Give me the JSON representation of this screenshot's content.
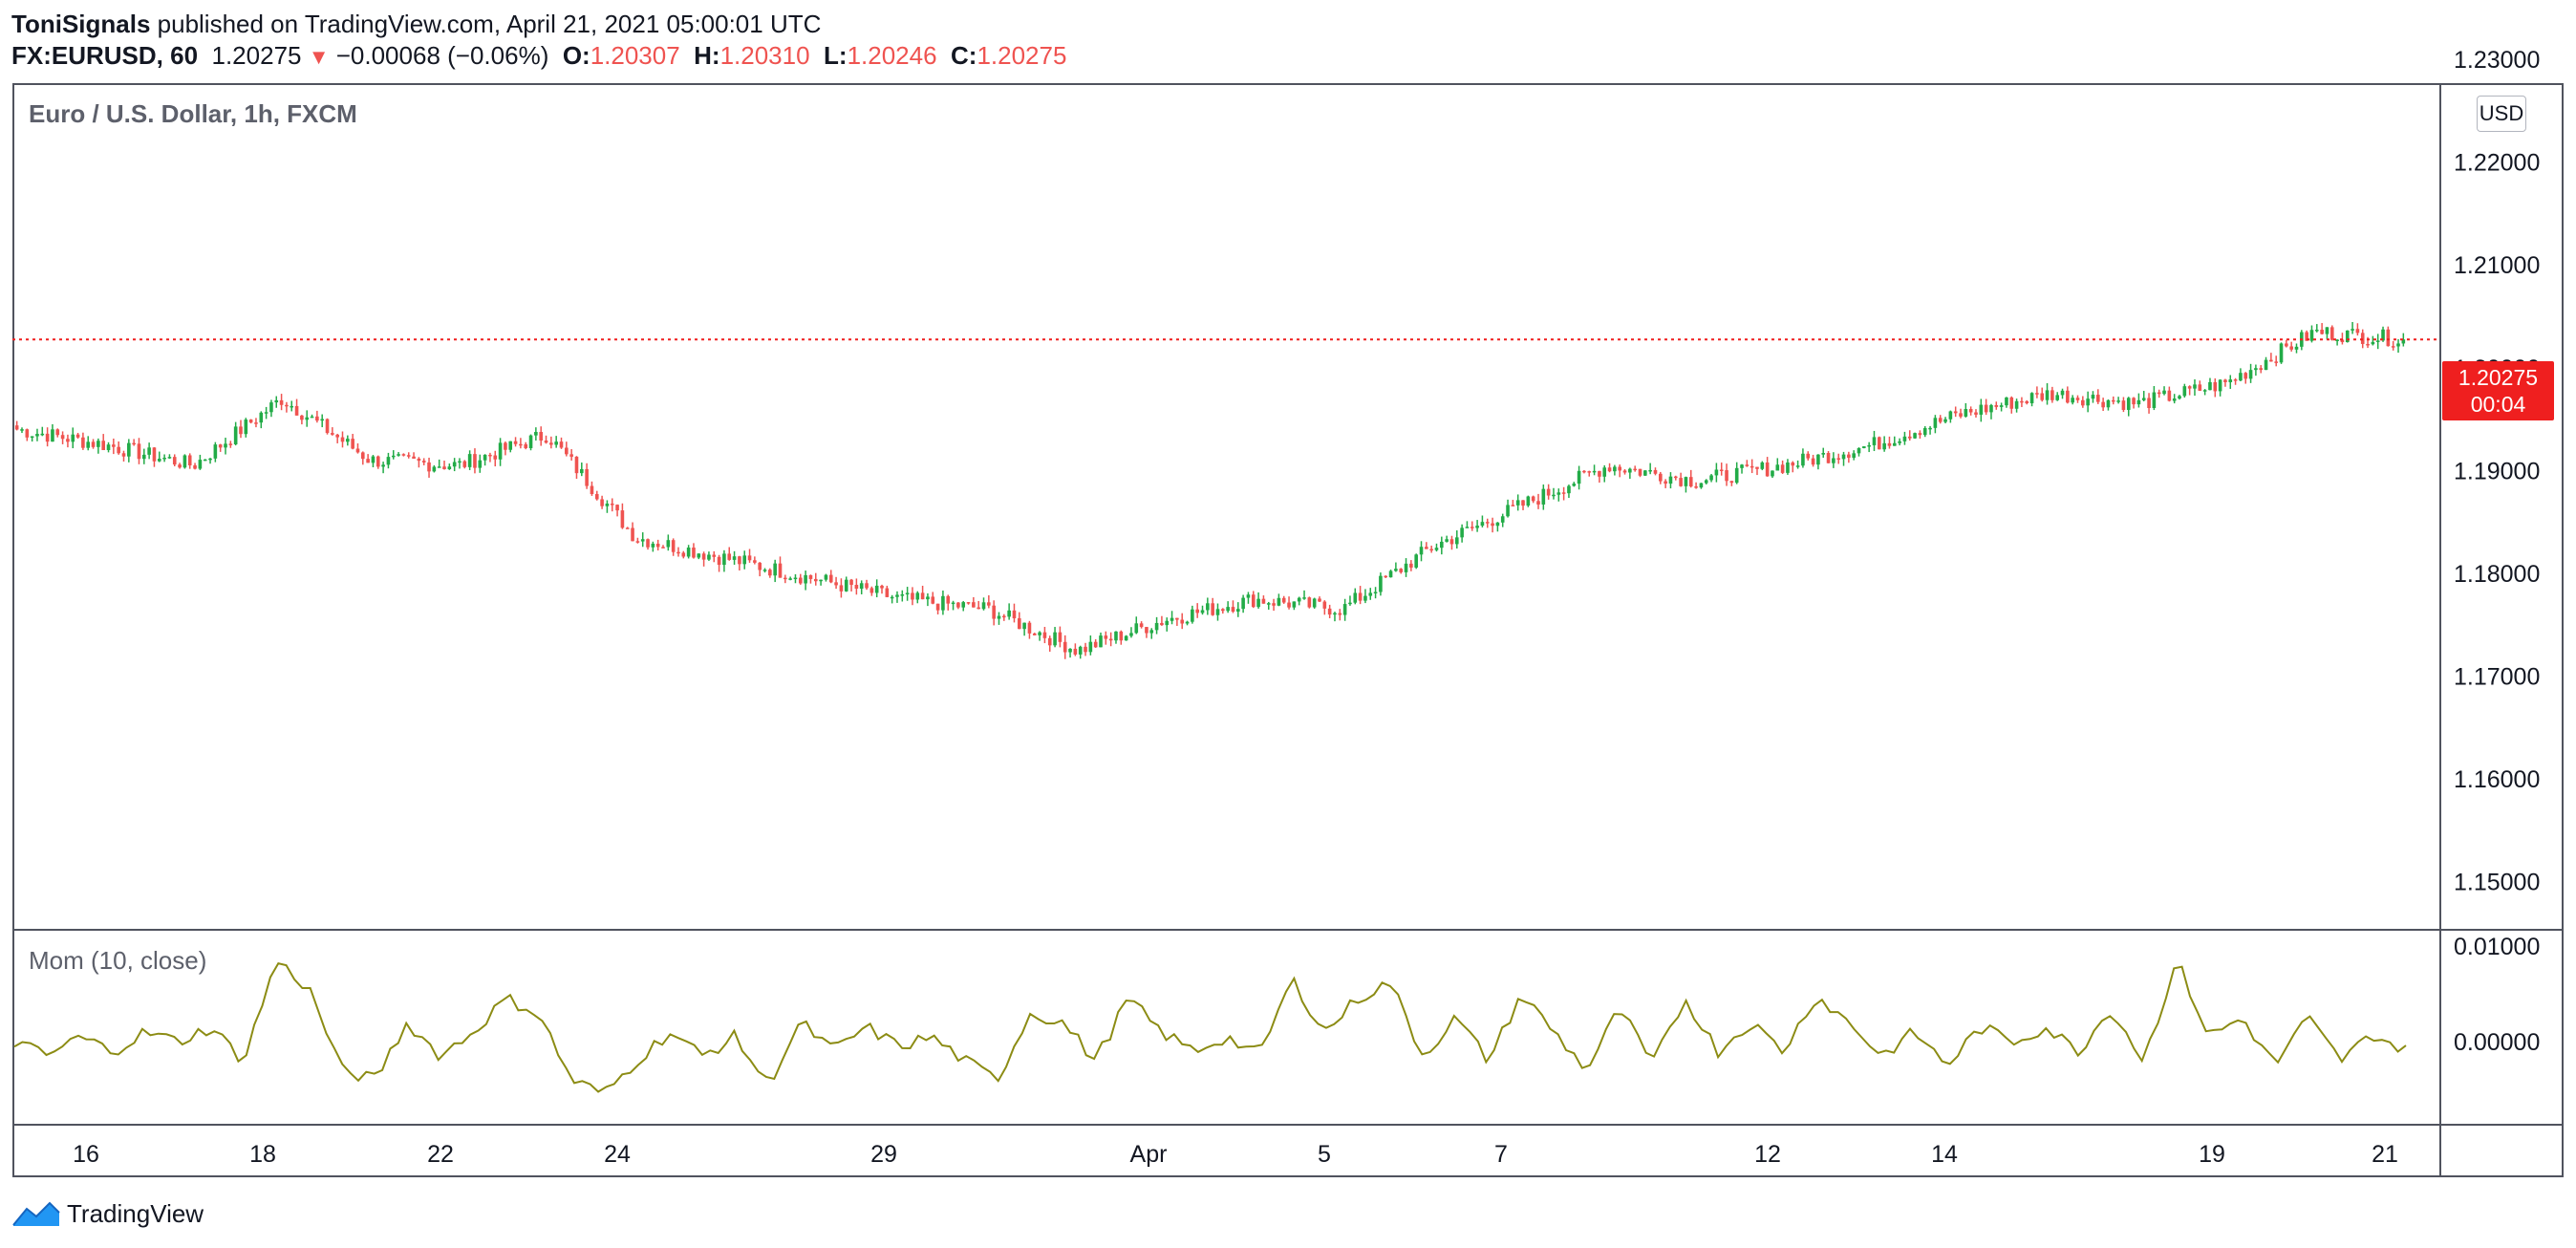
{
  "header": {
    "author": "ToniSignals",
    "published_text": " published on TradingView.com, April 21, 2021 05:00:01 UTC",
    "symbol": "FX:EURUSD, 60",
    "last": "1.20275",
    "change": "−0.00068 (−0.06%)",
    "o_label": "O:",
    "o_value": "1.20307",
    "h_label": "H:",
    "h_value": "1.20310",
    "l_label": "L:",
    "l_value": "1.20246",
    "c_label": "C:",
    "c_value": "1.20275"
  },
  "main_pane": {
    "title": "Euro / U.S. Dollar, 1h, FXCM",
    "currency_button": "USD"
  },
  "price_tag": {
    "price": "1.20275",
    "countdown": "00:04"
  },
  "momentum_pane": {
    "title": "Mom (10, close)"
  },
  "brand": {
    "name": "TradingView"
  },
  "colors": {
    "up": "#26a69a",
    "up_bar": "#22ab47",
    "down": "#ef5350",
    "momentum": "#8c8c14",
    "last_line": "#ef1f1f"
  },
  "chart_data": [
    {
      "type": "candlestick",
      "title": "Euro / U.S. Dollar, 1h, FXCM",
      "ylim": [
        1.1455,
        1.2275
      ],
      "y_ticks": [
        "1.22000",
        "1.21000",
        "1.20000",
        "1.19000",
        "1.18000",
        "1.17000",
        "1.16000",
        "1.15000"
      ],
      "y_tick_values": [
        1.22,
        1.21,
        1.2,
        1.19,
        1.18,
        1.17,
        1.16,
        1.15
      ],
      "partially_hidden_top_tick": "1.23000",
      "x_ticks": [
        "16",
        "18",
        "22",
        "24",
        "29",
        "Apr",
        "5",
        "7",
        "12",
        "14",
        "19",
        "21"
      ],
      "last_price": 1.20275,
      "approx_close_path": [
        [
          "Mar 15",
          1.194
        ],
        [
          "Mar 16",
          1.1925
        ],
        [
          "Mar 17",
          1.1905
        ],
        [
          "Mar 18",
          1.197
        ],
        [
          "Mar 19",
          1.191
        ],
        [
          "Mar 22",
          1.1905
        ],
        [
          "Mar 23",
          1.1935
        ],
        [
          "Mar 24",
          1.1835
        ],
        [
          "Mar 25",
          1.1815
        ],
        [
          "Mar 26",
          1.1795
        ],
        [
          "Mar 29",
          1.1775
        ],
        [
          "Mar 30",
          1.1765
        ],
        [
          "Mar 31",
          1.1725
        ],
        [
          "Apr 1",
          1.1755
        ],
        [
          "Apr 2",
          1.1775
        ],
        [
          "Apr 5",
          1.1765
        ],
        [
          "Apr 6",
          1.1825
        ],
        [
          "Apr 7",
          1.1865
        ],
        [
          "Apr 8",
          1.1905
        ],
        [
          "Apr 9",
          1.189
        ],
        [
          "Apr 12",
          1.1905
        ],
        [
          "Apr 13",
          1.1925
        ],
        [
          "Apr 14",
          1.1955
        ],
        [
          "Apr 15",
          1.1975
        ],
        [
          "Apr 16",
          1.1965
        ],
        [
          "Apr 19",
          1.1985
        ],
        [
          "Apr 20",
          1.2035
        ],
        [
          "Apr 21",
          1.20275
        ]
      ]
    },
    {
      "type": "line",
      "title": "Mom (10, close)",
      "ylim": [
        -0.0085,
        0.0115
      ],
      "y_ticks": [
        "0.01000",
        "0.00000"
      ],
      "y_tick_values": [
        0.01,
        0.0
      ],
      "series": [
        {
          "values": [
            0.0,
            -0.0015,
            0.0005,
            -0.001,
            0.001,
            0.0,
            0.0015,
            -0.002,
            0.0085,
            0.0055,
            -0.003,
            -0.004,
            0.002,
            -0.0015,
            0.001,
            0.0045,
            0.003,
            -0.004,
            -0.0055,
            -0.002,
            0.001,
            -0.0015,
            0.0005,
            -0.0045,
            0.002,
            -0.001,
            0.0015,
            -0.0005,
            0.0005,
            -0.002,
            -0.004,
            0.003,
            0.002,
            -0.002,
            0.0045,
            0.001,
            -0.001,
            0.0005,
            -0.0015,
            0.0065,
            0.001,
            0.0045,
            0.0062,
            -0.0015,
            0.0025,
            -0.002,
            0.005,
            0.001,
            -0.003,
            0.0035,
            -0.0025,
            0.0045,
            -0.001,
            0.002,
            -0.001,
            0.0048,
            0.002,
            -0.0015,
            0.001,
            -0.0025,
            0.0015,
            0.0,
            0.0015,
            -0.001,
            0.0035,
            -0.002,
            0.0085,
            0.0005,
            0.0025,
            -0.0025,
            0.0025,
            -0.002,
            0.0008,
            -0.001
          ]
        }
      ]
    }
  ]
}
